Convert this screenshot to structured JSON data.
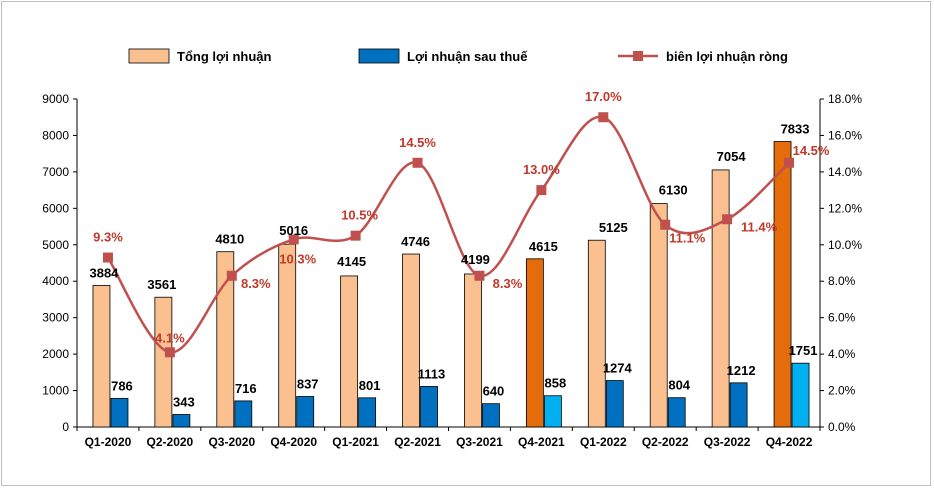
{
  "chart_data": {
    "type": "bar",
    "categories": [
      "Q1-2020",
      "Q2-2020",
      "Q3-2020",
      "Q4-2020",
      "Q1-2021",
      "Q2-2021",
      "Q3-2021",
      "Q4-2021",
      "Q1-2022",
      "Q2-2022",
      "Q3-2022",
      "Q4-2022"
    ],
    "series": [
      {
        "name": "Tổng lợi nhuận",
        "kind": "bar",
        "axis": "left",
        "color": "#fac090",
        "highlight_color": "#e46c0a",
        "highlight_indices": [
          7,
          11
        ],
        "values": [
          3884,
          3561,
          4810,
          5016,
          4145,
          4746,
          4199,
          4615,
          5125,
          6130,
          7054,
          7833
        ],
        "labels": [
          "3884",
          "3561",
          "4810",
          "5016",
          "4145",
          "4746",
          "4199",
          "4615",
          "5125",
          "6130",
          "7054",
          "7833"
        ]
      },
      {
        "name": "Lợi nhuận sau thuế",
        "kind": "bar",
        "axis": "left",
        "color": "#0070c0",
        "highlight_color": "#00b0f0",
        "highlight_indices": [
          7,
          11
        ],
        "values": [
          786,
          343,
          716,
          837,
          801,
          1113,
          640,
          858,
          1274,
          804,
          1212,
          1751
        ],
        "labels": [
          "786",
          "343",
          "716",
          "837",
          "801",
          "1113",
          "640",
          "858",
          "1274",
          "804",
          "1212",
          "1751"
        ]
      },
      {
        "name": "biên lợi nhuận ròng",
        "kind": "line",
        "axis": "right",
        "color": "#c0504d",
        "values": [
          9.3,
          4.1,
          8.3,
          10.3,
          10.5,
          14.5,
          8.3,
          13.0,
          17.0,
          11.1,
          11.4,
          14.5
        ],
        "labels": [
          "9.3%",
          "4.1%",
          "8.3%",
          "10.3%",
          "10.5%",
          "14.5%",
          "8.3%",
          "13.0%",
          "17.0%",
          "11.1%",
          "11.4%",
          "14.5%"
        ]
      }
    ],
    "y_left": {
      "min": 0,
      "max": 9000,
      "step": 1000,
      "ticks": [
        "0",
        "1000",
        "2000",
        "3000",
        "4000",
        "5000",
        "6000",
        "7000",
        "8000",
        "9000"
      ]
    },
    "y_right": {
      "min": 0,
      "max": 18,
      "step": 2,
      "ticks": [
        "0.0%",
        "2.0%",
        "4.0%",
        "6.0%",
        "8.0%",
        "10.0%",
        "12.0%",
        "14.0%",
        "16.0%",
        "18.0%"
      ]
    },
    "legend_position": "top",
    "grid": false
  }
}
